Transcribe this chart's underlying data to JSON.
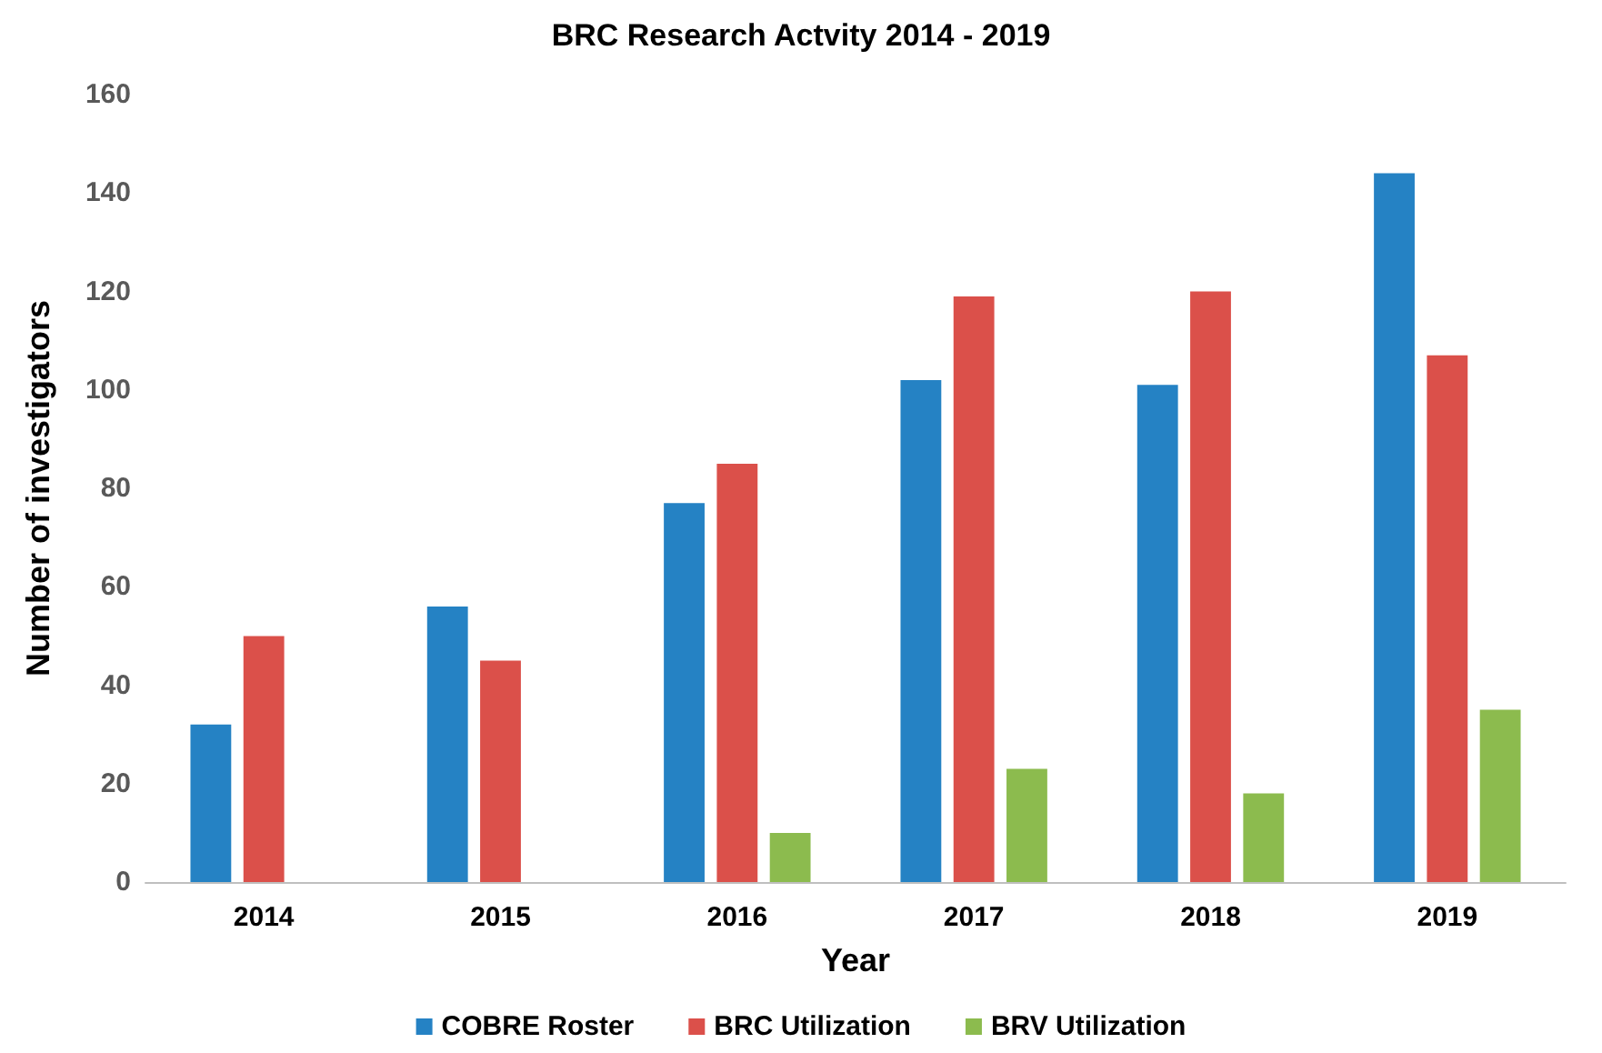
{
  "chart_data": {
    "type": "bar",
    "title": "BRC Research Actvity 2014 - 2019",
    "xlabel": "Year",
    "ylabel": "Number of investigators",
    "categories": [
      "2014",
      "2015",
      "2016",
      "2017",
      "2018",
      "2019"
    ],
    "series": [
      {
        "name": "COBRE Roster",
        "color": "#2582c4",
        "values": [
          32,
          56,
          77,
          102,
          101,
          144
        ]
      },
      {
        "name": "BRC Utilization",
        "color": "#db504a",
        "values": [
          50,
          45,
          85,
          119,
          120,
          107
        ]
      },
      {
        "name": "BRV Utilization",
        "color": "#8cbb4e",
        "values": [
          null,
          null,
          10,
          23,
          18,
          35
        ]
      }
    ],
    "ylim": [
      0,
      160
    ],
    "yticks": [
      0,
      20,
      40,
      60,
      80,
      100,
      120,
      140,
      160
    ],
    "grid": false,
    "legend": "bottom"
  }
}
